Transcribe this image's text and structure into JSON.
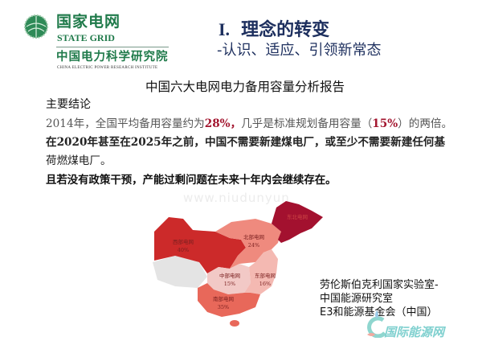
{
  "header": {
    "org_name_cn": "国家电网",
    "org_name_en": "STATE GRID",
    "institute_cn": "中国电力科学研究院",
    "institute_en": "CHINA ELECTRIC POWER RESEARCH INSTITUTE",
    "brand_color": "#1f7a4a"
  },
  "slide": {
    "section_number": "I.",
    "title": "理念的转变",
    "subtitle": "-认识、适应、引领新常态",
    "report_title": "中国六大电网电力备用容量分析报告",
    "conclusion_heading": "主要结论",
    "paragraph1": {
      "part1": "2014年，全国平均备用容量约为",
      "highlight1": "28%，",
      "part2": "几乎是标准规划备用容量（",
      "highlight2": "15%",
      "part3": "）的两倍。"
    },
    "paragraph2_line1": "在2020年甚至在2025年之前，中国不需要新建煤电厂，或至少不需要新建任何基",
    "paragraph2_line2": "荷燃煤电厂。",
    "paragraph3": "且若没有政策干预，产能过剩问题在未来十年内会继续存在。",
    "highlight_color": "#a3162f"
  },
  "map": {
    "regions": [
      {
        "name": "西部电网",
        "value": "40%",
        "color": "#cc2a2a"
      },
      {
        "name": "北部电网",
        "value": "24%",
        "color": "#ef8a7e"
      },
      {
        "name": "东北电网",
        "value": "",
        "color": "#a3112f"
      },
      {
        "name": "中部电网",
        "value": "15%",
        "color": "#f2c9c6"
      },
      {
        "name": "东部电网",
        "value": "16%",
        "color": "#f4b9b2"
      },
      {
        "name": "南部电网",
        "value": "35%",
        "color": "#e8685a"
      }
    ],
    "no_data_color": "#e4e4e4"
  },
  "credits": {
    "line1": "劳伦斯伯克利国家实验室-",
    "line2": "中国能源研究室",
    "line3": "E3和能源基金会（中国）"
  },
  "watermarks": {
    "url": "www.niudunyun",
    "site_name": "国际能源网"
  }
}
